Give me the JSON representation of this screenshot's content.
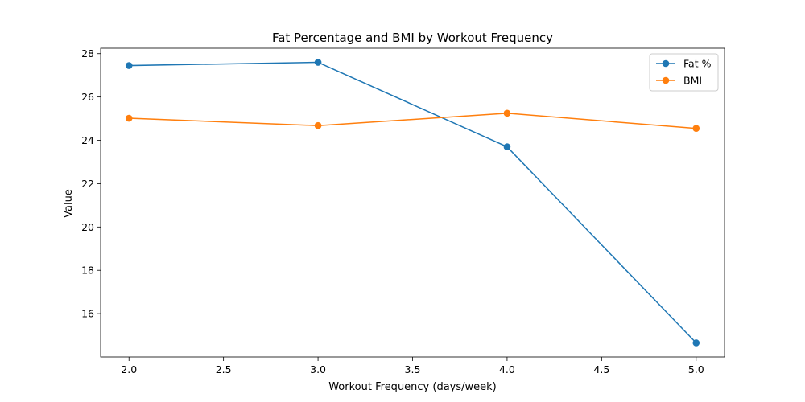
{
  "chart_data": {
    "type": "line",
    "title": "Fat Percentage and BMI by Workout Frequency",
    "xlabel": "Workout Frequency (days/week)",
    "ylabel": "Value",
    "x": [
      2.0,
      3.0,
      4.0,
      5.0
    ],
    "series": [
      {
        "name": "Fat %",
        "color": "#1f77b4",
        "values": [
          27.45,
          27.6,
          23.7,
          14.65
        ]
      },
      {
        "name": "BMI",
        "color": "#ff7f0e",
        "values": [
          25.02,
          24.68,
          25.25,
          24.55
        ]
      }
    ],
    "xlim": [
      1.85,
      5.15
    ],
    "ylim": [
      14.0,
      28.25
    ],
    "xticks": [
      2.0,
      2.5,
      3.0,
      3.5,
      4.0,
      4.5,
      5.0
    ],
    "xtick_labels": [
      "2.0",
      "2.5",
      "3.0",
      "3.5",
      "4.0",
      "4.5",
      "5.0"
    ],
    "yticks": [
      16,
      18,
      20,
      22,
      24,
      26,
      28
    ],
    "ytick_labels": [
      "16",
      "18",
      "20",
      "22",
      "24",
      "26",
      "28"
    ],
    "grid": false,
    "legend_position": "top-right"
  }
}
